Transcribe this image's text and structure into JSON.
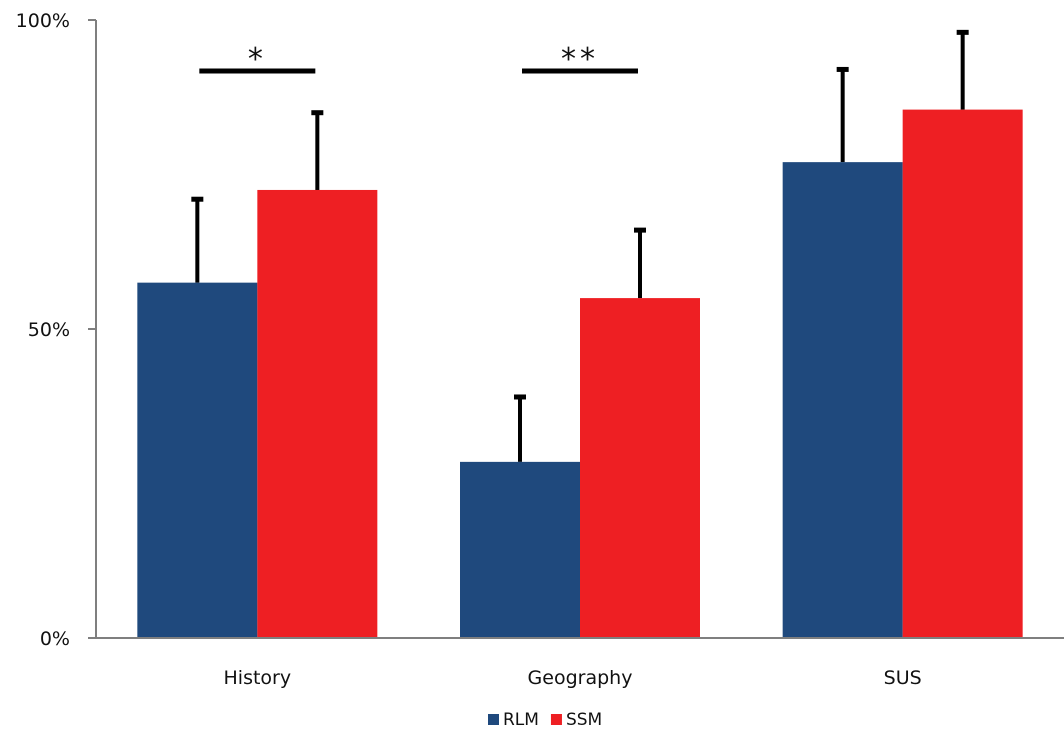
{
  "chart_data": {
    "type": "bar",
    "title": "",
    "xlabel": "",
    "ylabel": "",
    "ylim": [
      0,
      100
    ],
    "y_ticks": [
      {
        "value": 0,
        "label": "0%"
      },
      {
        "value": 50,
        "label": "50%"
      },
      {
        "value": 100,
        "label": "100%"
      }
    ],
    "grid": false,
    "legend_position": "bottom-center",
    "categories": [
      "History",
      "Geography",
      "SUS"
    ],
    "series": [
      {
        "name": "RLM",
        "color": "#1f497d",
        "values": [
          57.5,
          28.5,
          77
        ],
        "error_upper": [
          71,
          39,
          92
        ]
      },
      {
        "name": "SSM",
        "color": "#ee1f23",
        "values": [
          72.5,
          55,
          85.5
        ],
        "error_upper": [
          85,
          66,
          98
        ]
      }
    ],
    "significance": [
      {
        "category_index": 0,
        "label": "*"
      },
      {
        "category_index": 1,
        "label": "**"
      }
    ]
  }
}
